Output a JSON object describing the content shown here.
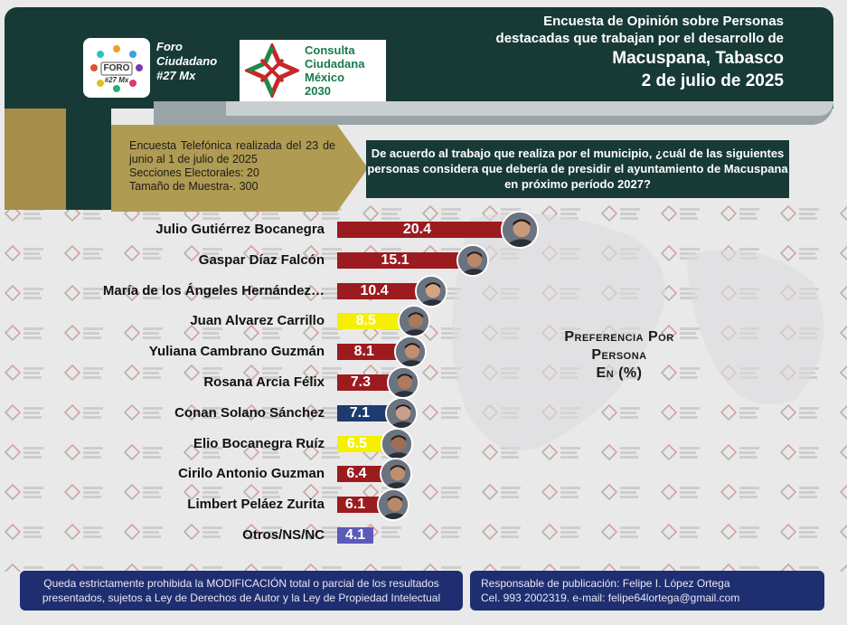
{
  "header": {
    "foro_logo_text": "FORO",
    "foro_logo_sub": "#27 Mx",
    "foro_name": "Foro\nCiudadano\n#27 Mx",
    "consulta_name": "Consulta\nCiudadana\nMéxico\n2030",
    "title_line1": "Encuesta de Opinión sobre Personas",
    "title_line2": "destacadas que trabajan por el desarrollo de",
    "title_line3": "Macuspana, Tabasco",
    "title_line4": "2 de julio de 2025"
  },
  "info": {
    "text": "Encuesta Telefónica realizada del 23 de junio al 1 de julio de 2025\nSecciones Electorales: 20\nTamaño de Muestra-. 300"
  },
  "question": "De acuerdo al trabajo que realiza por el municipio, ¿cuál de las siguientes personas considera que debería de presidir el ayuntamiento de Macuspana en próximo período 2027?",
  "pref_label": "Preferencia Por\nPersona\nEn (%)",
  "chart_data": {
    "type": "bar",
    "orientation": "horizontal",
    "title": "Preferencia Por Persona En (%)",
    "categories": [
      "Julio Gutiérrez Bocanegra",
      "Gaspar Díaz Falcón",
      "María de los Ángeles Hernández…",
      "Juan Alvarez Carrillo",
      "Yuliana Cambrano Guzmán",
      "Rosana Arcia Félix",
      "Conan Solano Sánchez",
      "Elio Bocanegra Ruíz",
      "Cirilo Antonio Guzman",
      "Limbert Peláez Zurita",
      "Otros/NS/NC"
    ],
    "values": [
      20.4,
      15.1,
      10.4,
      8.5,
      8.1,
      7.3,
      7.1,
      6.5,
      6.4,
      6.1,
      4.1
    ],
    "value_labels": [
      "20.4",
      "15.1",
      "10.4",
      "8.5",
      "8.1",
      "7.3",
      "7.1",
      "6.5",
      "6.4",
      "6.1",
      "4.1"
    ],
    "colors": [
      "#9b1b1f",
      "#9b1b1f",
      "#9b1b1f",
      "#f5f000",
      "#9b1b1f",
      "#9b1b1f",
      "#1d3b6e",
      "#f5f000",
      "#9b1b1f",
      "#9b1b1f",
      "#5c5ab8"
    ],
    "label_colors": [
      "#ffffff",
      "#ffffff",
      "#ffffff",
      "#ffffff",
      "#ffffff",
      "#ffffff",
      "#ffffff",
      "#ffffff",
      "#ffffff",
      "#ffffff",
      "#ffffff"
    ],
    "has_photo": [
      true,
      true,
      true,
      true,
      true,
      true,
      true,
      true,
      true,
      true,
      false
    ],
    "grid": false,
    "legend": "none"
  },
  "footer": {
    "left_line1": "Queda estrictamente prohibida la MODIFICACIÓN  total o parcial de los resultados",
    "left_line2": "presentados, sujetos a Ley de Derechos de Autor y la Ley de Propiedad Intelectual",
    "right_line1": "Responsable de publicación: Felipe I. López Ortega",
    "right_line2": "Cel. 993 2002319. e-mail: felipe64lortega@gmail.com"
  },
  "colors": {
    "header_bg": "#173a36",
    "tan": "#b09b52",
    "footer_bg": "#1f2e70"
  }
}
